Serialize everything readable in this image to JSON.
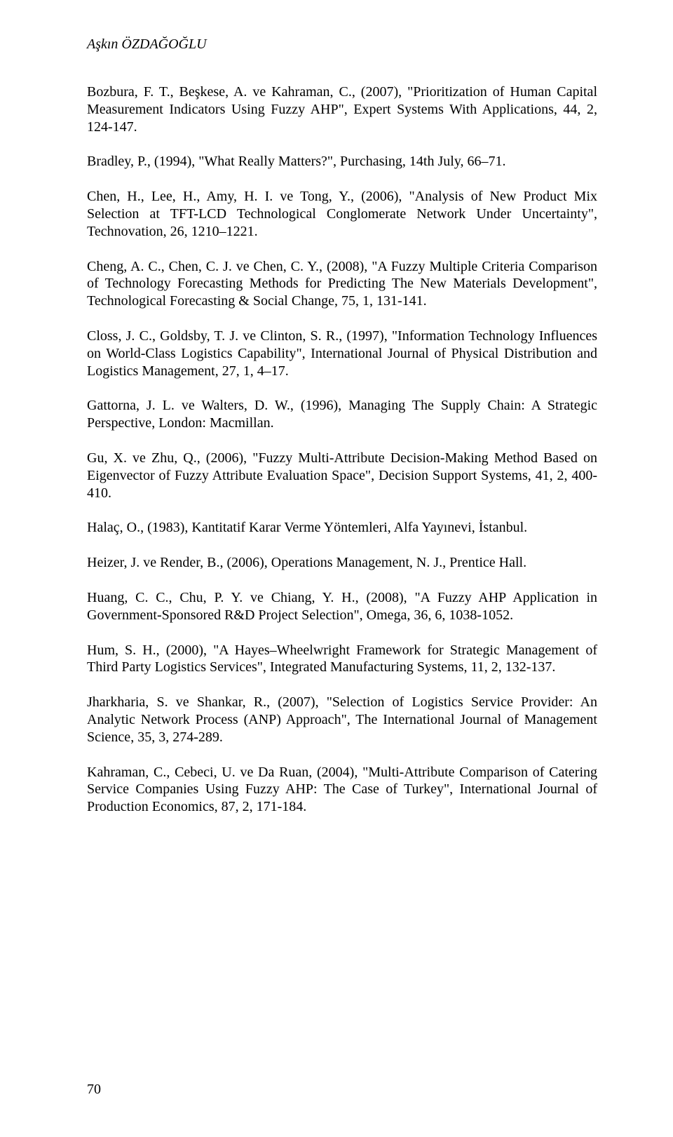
{
  "header": "Aşkın ÖZDAĞOĞLU",
  "references": [
    "Bozbura, F. T., Beşkese, A. ve Kahraman, C., (2007), \"Prioritization of Human Capital Measurement Indicators Using Fuzzy AHP\", Expert Systems With Applications, 44, 2, 124-147.",
    "Bradley, P., (1994), \"What Really Matters?\", Purchasing, 14th July, 66–71.",
    "Chen, H., Lee, H., Amy, H. I. ve Tong, Y., (2006), \"Analysis of New Product Mix Selection at TFT-LCD Technological Conglomerate Network Under Uncertainty\", Technovation, 26, 1210–1221.",
    "Cheng, A. C., Chen, C. J. ve Chen, C. Y., (2008), \"A Fuzzy Multiple Criteria Comparison of Technology Forecasting Methods for Predicting The New Materials Development\", Technological Forecasting & Social Change, 75, 1, 131-141.",
    "Closs, J. C., Goldsby, T. J. ve Clinton, S. R., (1997), \"Information Technology Influences on World-Class Logistics Capability\", International Journal of Physical Distribution and Logistics Management, 27, 1, 4–17.",
    "Gattorna, J. L. ve Walters, D. W., (1996), Managing The Supply Chain: A Strategic Perspective, London: Macmillan.",
    "Gu, X. ve Zhu, Q., (2006), \"Fuzzy Multi-Attribute Decision-Making Method Based on Eigenvector of Fuzzy Attribute Evaluation Space\", Decision Support Systems, 41, 2, 400-410.",
    "Halaç, O., (1983), Kantitatif Karar Verme Yöntemleri, Alfa Yayınevi, İstanbul.",
    "Heizer, J. ve Render, B., (2006), Operations Management, N. J., Prentice Hall.",
    "Huang, C. C., Chu, P. Y. ve Chiang, Y. H., (2008), \"A Fuzzy AHP Application in Government-Sponsored R&D Project Selection\", Omega, 36, 6, 1038-1052.",
    "Hum, S. H., (2000), \"A Hayes–Wheelwright Framework for Strategic Management of Third Party Logistics Services\", Integrated Manufacturing Systems, 11, 2, 132-137.",
    "Jharkharia, S. ve Shankar, R., (2007), \"Selection of Logistics Service Provider: An Analytic Network Process (ANP) Approach\", The International Journal of Management Science, 35, 3, 274-289.",
    "Kahraman, C., Cebeci, U. ve Da Ruan, (2004), \"Multi-Attribute Comparison of Catering Service Companies Using Fuzzy AHP: The Case of Turkey\", International Journal of Production Economics, 87, 2, 171-184."
  ],
  "pageNumber": "70"
}
